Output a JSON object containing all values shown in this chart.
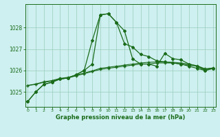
{
  "title": "Graphe pression niveau de la mer (hPa)",
  "bg_color": "#cef0f0",
  "line_color": "#1a6b1a",
  "grid_color": "#99ccbb",
  "ylim": [
    1024.3,
    1029.1
  ],
  "yticks": [
    1025,
    1026,
    1027,
    1028
  ],
  "xlim": [
    -0.3,
    23.3
  ],
  "xticks": [
    0,
    1,
    2,
    3,
    4,
    5,
    6,
    7,
    8,
    9,
    10,
    11,
    12,
    13,
    14,
    15,
    16,
    17,
    18,
    19,
    20,
    21,
    22,
    23
  ],
  "line1": [
    1024.55,
    1025.0,
    1025.35,
    1025.45,
    1025.6,
    1025.65,
    1025.8,
    1026.0,
    1027.4,
    1028.6,
    1028.65,
    1028.25,
    1027.85,
    1026.55,
    1026.3,
    1026.3,
    1026.2,
    1026.8,
    1026.55,
    1026.5,
    1026.3,
    1026.2,
    1026.0,
    1026.1
  ],
  "line2": [
    1024.55,
    1025.0,
    1025.35,
    1025.45,
    1025.6,
    1025.65,
    1025.8,
    1026.0,
    1026.3,
    1028.6,
    1028.65,
    1028.25,
    1027.25,
    1027.1,
    1026.75,
    1026.65,
    1026.45,
    1026.4,
    1026.35,
    1026.3,
    1026.2,
    1026.1,
    1026.0,
    1026.1
  ],
  "line3": [
    1025.3,
    1025.35,
    1025.45,
    1025.5,
    1025.6,
    1025.65,
    1025.75,
    1025.85,
    1025.95,
    1026.05,
    1026.1,
    1026.15,
    1026.2,
    1026.25,
    1026.3,
    1026.3,
    1026.35,
    1026.35,
    1026.35,
    1026.3,
    1026.25,
    1026.2,
    1026.05,
    1026.1
  ],
  "line4": [
    1025.3,
    1025.37,
    1025.47,
    1025.53,
    1025.63,
    1025.68,
    1025.78,
    1025.88,
    1025.98,
    1026.1,
    1026.15,
    1026.2,
    1026.25,
    1026.3,
    1026.35,
    1026.38,
    1026.4,
    1026.4,
    1026.38,
    1026.35,
    1026.3,
    1026.22,
    1026.08,
    1026.12
  ]
}
